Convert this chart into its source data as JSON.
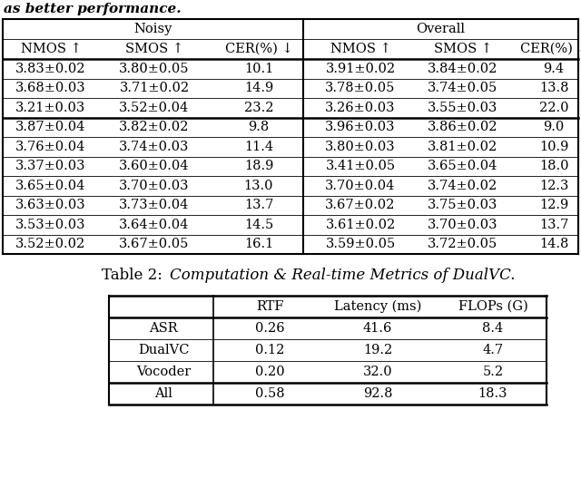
{
  "top_text": "as better performance.",
  "table2_caption_normal": "Table 2: ",
  "table2_caption_italic": "Computation & Real-time Metrics of DualVC.",
  "table1": {
    "group_headers": [
      "Noisy",
      "Overall"
    ],
    "col_headers": [
      "NMOS ↑",
      "SMOS ↑",
      "CER(%) ↓",
      "NMOS ↑",
      "SMOS ↑",
      "CER(%) ↓"
    ],
    "rows": [
      [
        "3.83±0.02",
        "3.80±0.05",
        "10.1",
        "3.91±0.02",
        "3.84±0.02",
        "9.4"
      ],
      [
        "3.68±0.03",
        "3.71±0.02",
        "14.9",
        "3.78±0.05",
        "3.74±0.05",
        "13.8"
      ],
      [
        "3.21±0.03",
        "3.52±0.04",
        "23.2",
        "3.26±0.03",
        "3.55±0.03",
        "22.0"
      ],
      [
        "3.87±0.04",
        "3.82±0.02",
        "9.8",
        "3.96±0.03",
        "3.86±0.02",
        "9.0"
      ],
      [
        "3.76±0.04",
        "3.74±0.03",
        "11.4",
        "3.80±0.03",
        "3.81±0.02",
        "10.9"
      ],
      [
        "3.37±0.03",
        "3.60±0.04",
        "18.9",
        "3.41±0.05",
        "3.65±0.04",
        "18.0"
      ],
      [
        "3.65±0.04",
        "3.70±0.03",
        "13.0",
        "3.70±0.04",
        "3.74±0.02",
        "12.3"
      ],
      [
        "3.63±0.03",
        "3.73±0.04",
        "13.7",
        "3.67±0.02",
        "3.75±0.03",
        "12.9"
      ],
      [
        "3.53±0.03",
        "3.64±0.04",
        "14.5",
        "3.61±0.02",
        "3.70±0.03",
        "13.7"
      ],
      [
        "3.52±0.02",
        "3.67±0.05",
        "16.1",
        "3.59±0.05",
        "3.72±0.05",
        "14.8"
      ]
    ],
    "thick_line_after_row": 2
  },
  "table2": {
    "col_headers": [
      "",
      "RTF",
      "Latency (ms)",
      "FLOPs (G)"
    ],
    "rows": [
      [
        "ASR",
        "0.26",
        "41.6",
        "8.4"
      ],
      [
        "DualVC",
        "0.12",
        "19.2",
        "4.7"
      ],
      [
        "Vocoder",
        "0.20",
        "32.0",
        "5.2"
      ],
      [
        "All",
        "0.58",
        "92.8",
        "18.3"
      ]
    ],
    "thick_line_after_row": 2
  },
  "bg_color": "#ffffff",
  "font_size": 10.5,
  "font_size_caption": 12
}
